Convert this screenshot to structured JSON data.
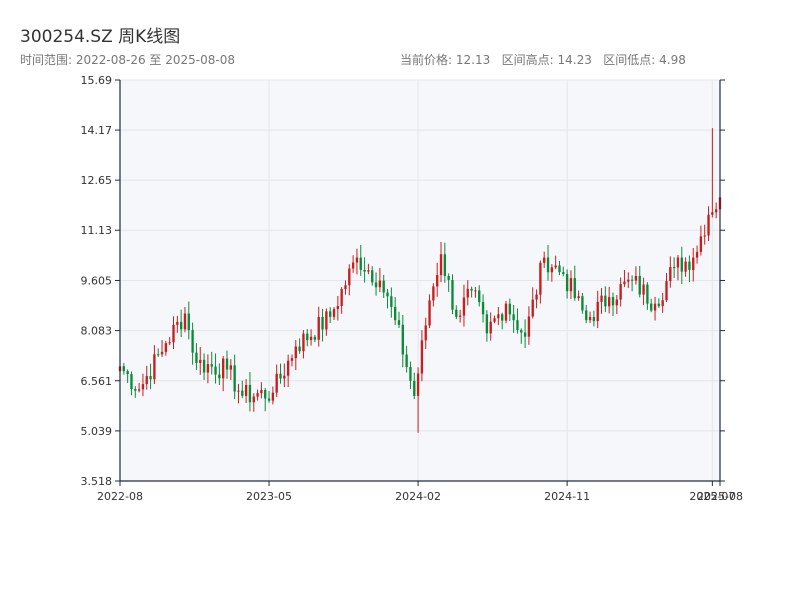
{
  "header": {
    "title": "300254.SZ 周K线图",
    "date_range": "时间范围: 2022-08-26 至 2025-08-08",
    "stats": "当前价格: 12.13   区间高点: 14.23   区间低点: 4.98"
  },
  "colors": {
    "up": "#c81e1e",
    "down": "#0b8a3a",
    "grid": "#e3e6ec",
    "plot_bg": "#f6f7fa",
    "axis": "#1f2d3d"
  },
  "chart_data": {
    "type": "candlestick",
    "title": "300254.SZ 周K线图",
    "ylim": [
      3.518,
      15.69
    ],
    "y_ticks": [
      3.518,
      5.039,
      6.561,
      8.083,
      9.605,
      11.13,
      12.65,
      14.17,
      15.69
    ],
    "y_tick_labels": [
      "3.518",
      "5.039",
      "6.561",
      "8.083",
      "9.605",
      "11.13",
      "12.65",
      "14.17",
      "15.69"
    ],
    "x_ticks": [
      {
        "label": "2022-08",
        "week": 0
      },
      {
        "label": "2023-05",
        "week": 39
      },
      {
        "label": "2024-02",
        "week": 78
      },
      {
        "label": "2024-11",
        "week": 117
      },
      {
        "label": "2025-07",
        "week": 155
      },
      {
        "label": "2025-08",
        "week": 157
      }
    ],
    "weeks": 157,
    "key_points": [
      {
        "week": 0,
        "close": 7.0
      },
      {
        "week": 5,
        "close": 6.3
      },
      {
        "week": 12,
        "close": 7.7
      },
      {
        "week": 17,
        "close": 8.6
      },
      {
        "week": 20,
        "close": 7.1
      },
      {
        "week": 28,
        "close": 6.9
      },
      {
        "week": 32,
        "close": 6.1
      },
      {
        "week": 40,
        "close": 6.2
      },
      {
        "week": 46,
        "close": 7.6
      },
      {
        "week": 55,
        "close": 8.5
      },
      {
        "week": 62,
        "close": 10.3
      },
      {
        "week": 68,
        "close": 9.6
      },
      {
        "week": 72,
        "close": 8.4
      },
      {
        "week": 77,
        "close": 6.1
      },
      {
        "week": 81,
        "close": 9.0
      },
      {
        "week": 84,
        "close": 10.4
      },
      {
        "week": 88,
        "close": 8.5
      },
      {
        "week": 92,
        "close": 9.3
      },
      {
        "week": 96,
        "close": 8.0
      },
      {
        "week": 101,
        "close": 8.9
      },
      {
        "week": 106,
        "close": 7.9
      },
      {
        "week": 111,
        "close": 10.3
      },
      {
        "week": 116,
        "close": 9.8
      },
      {
        "week": 122,
        "close": 8.4
      },
      {
        "week": 128,
        "close": 9.1
      },
      {
        "week": 134,
        "close": 9.6
      },
      {
        "week": 140,
        "close": 8.9
      },
      {
        "week": 145,
        "close": 10.0
      },
      {
        "week": 150,
        "close": 10.3
      },
      {
        "week": 154,
        "close": 11.6
      },
      {
        "week": 157,
        "close": 12.13
      }
    ],
    "special_weeks": [
      {
        "week": 78,
        "low": 4.98
      },
      {
        "week": 155,
        "high": 14.23
      }
    ]
  }
}
